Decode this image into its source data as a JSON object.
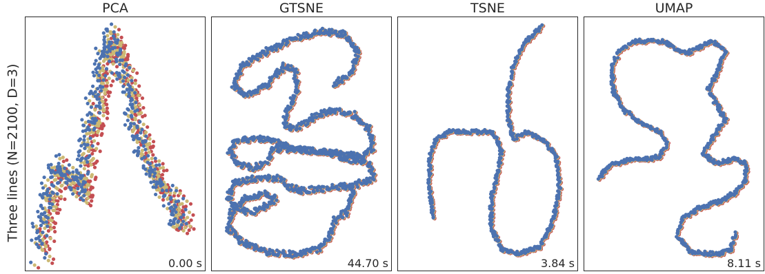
{
  "figure": {
    "ylabel": "Three lines (N=2100, D=3)",
    "series_colors": [
      "#c44e52",
      "#ccb974",
      "#4c72b0"
    ]
  },
  "chart_data": [
    {
      "type": "scatter",
      "title": "PCA",
      "time_label": "0.00 s",
      "xlim": [
        0,
        1
      ],
      "ylim": [
        0,
        1
      ],
      "grid": false,
      "path": [
        [
          0.05,
          0.06
        ],
        [
          0.06,
          0.15
        ],
        [
          0.1,
          0.3
        ],
        [
          0.14,
          0.4
        ],
        [
          0.2,
          0.42
        ],
        [
          0.24,
          0.35
        ],
        [
          0.28,
          0.3
        ],
        [
          0.31,
          0.45
        ],
        [
          0.34,
          0.56
        ],
        [
          0.38,
          0.72
        ],
        [
          0.42,
          0.86
        ],
        [
          0.46,
          0.95
        ],
        [
          0.5,
          0.85
        ],
        [
          0.54,
          0.78
        ],
        [
          0.58,
          0.7
        ],
        [
          0.6,
          0.58
        ],
        [
          0.64,
          0.5
        ],
        [
          0.7,
          0.42
        ],
        [
          0.75,
          0.32
        ],
        [
          0.8,
          0.28
        ],
        [
          0.86,
          0.25
        ],
        [
          0.88,
          0.2
        ],
        [
          0.84,
          0.15
        ]
      ],
      "spread": 0.045,
      "shift": 0.022
    },
    {
      "type": "scatter",
      "title": "GTSNE",
      "time_label": "44.70 s",
      "xlim": [
        0,
        1
      ],
      "ylim": [
        0,
        1
      ],
      "grid": false,
      "path": [
        [
          0.69,
          0.74
        ],
        [
          0.8,
          0.8
        ],
        [
          0.83,
          0.88
        ],
        [
          0.75,
          0.95
        ],
        [
          0.6,
          0.96
        ],
        [
          0.45,
          0.93
        ],
        [
          0.3,
          0.88
        ],
        [
          0.15,
          0.82
        ],
        [
          0.1,
          0.74
        ],
        [
          0.18,
          0.7
        ],
        [
          0.3,
          0.74
        ],
        [
          0.4,
          0.82
        ],
        [
          0.46,
          0.8
        ],
        [
          0.48,
          0.72
        ],
        [
          0.42,
          0.65
        ],
        [
          0.4,
          0.58
        ],
        [
          0.46,
          0.56
        ],
        [
          0.6,
          0.62
        ],
        [
          0.7,
          0.64
        ],
        [
          0.8,
          0.62
        ],
        [
          0.9,
          0.56
        ],
        [
          0.92,
          0.48
        ],
        [
          0.85,
          0.45
        ],
        [
          0.6,
          0.47
        ],
        [
          0.45,
          0.48
        ],
        [
          0.3,
          0.52
        ],
        [
          0.12,
          0.52
        ],
        [
          0.08,
          0.47
        ],
        [
          0.12,
          0.42
        ],
        [
          0.22,
          0.4
        ],
        [
          0.3,
          0.43
        ],
        [
          0.34,
          0.48
        ],
        [
          0.45,
          0.48
        ],
        [
          0.6,
          0.47
        ],
        [
          0.75,
          0.44
        ],
        [
          0.9,
          0.42
        ],
        [
          0.92,
          0.36
        ],
        [
          0.8,
          0.33
        ],
        [
          0.65,
          0.32
        ],
        [
          0.5,
          0.31
        ],
        [
          0.4,
          0.33
        ],
        [
          0.38,
          0.36
        ],
        [
          0.3,
          0.36
        ],
        [
          0.2,
          0.36
        ],
        [
          0.1,
          0.34
        ],
        [
          0.07,
          0.28
        ],
        [
          0.12,
          0.24
        ],
        [
          0.2,
          0.22
        ],
        [
          0.3,
          0.25
        ],
        [
          0.35,
          0.28
        ],
        [
          0.28,
          0.3
        ],
        [
          0.18,
          0.28
        ],
        [
          0.1,
          0.24
        ],
        [
          0.07,
          0.16
        ],
        [
          0.15,
          0.1
        ],
        [
          0.3,
          0.06
        ],
        [
          0.45,
          0.05
        ],
        [
          0.6,
          0.07
        ],
        [
          0.67,
          0.13
        ],
        [
          0.7,
          0.2
        ],
        [
          0.76,
          0.22
        ],
        [
          0.8,
          0.3
        ],
        [
          0.78,
          0.34
        ]
      ],
      "spread": 0.012,
      "shift": 0.004
    },
    {
      "type": "scatter",
      "title": "TSNE",
      "time_label": "3.84 s",
      "xlim": [
        0,
        1
      ],
      "ylim": [
        0,
        1
      ],
      "grid": false,
      "path": [
        [
          0.18,
          0.2
        ],
        [
          0.16,
          0.32
        ],
        [
          0.16,
          0.45
        ],
        [
          0.2,
          0.52
        ],
        [
          0.28,
          0.55
        ],
        [
          0.45,
          0.55
        ],
        [
          0.52,
          0.55
        ],
        [
          0.58,
          0.48
        ],
        [
          0.56,
          0.38
        ],
        [
          0.52,
          0.28
        ],
        [
          0.52,
          0.16
        ],
        [
          0.58,
          0.07
        ],
        [
          0.68,
          0.05
        ],
        [
          0.8,
          0.08
        ],
        [
          0.88,
          0.18
        ],
        [
          0.92,
          0.32
        ],
        [
          0.9,
          0.45
        ],
        [
          0.82,
          0.52
        ],
        [
          0.72,
          0.55
        ],
        [
          0.65,
          0.52
        ],
        [
          0.62,
          0.6
        ],
        [
          0.62,
          0.72
        ],
        [
          0.65,
          0.82
        ],
        [
          0.72,
          0.92
        ],
        [
          0.82,
          0.98
        ]
      ],
      "spread": 0.008,
      "shift": 0.004
    },
    {
      "type": "scatter",
      "title": "UMAP",
      "time_label": "8.11 s",
      "xlim": [
        0,
        1
      ],
      "ylim": [
        0,
        1
      ],
      "grid": false,
      "path": [
        [
          0.06,
          0.36
        ],
        [
          0.12,
          0.41
        ],
        [
          0.2,
          0.43
        ],
        [
          0.3,
          0.44
        ],
        [
          0.36,
          0.44
        ],
        [
          0.42,
          0.45
        ],
        [
          0.46,
          0.5
        ],
        [
          0.42,
          0.55
        ],
        [
          0.32,
          0.58
        ],
        [
          0.22,
          0.63
        ],
        [
          0.14,
          0.72
        ],
        [
          0.14,
          0.82
        ],
        [
          0.18,
          0.88
        ],
        [
          0.28,
          0.92
        ],
        [
          0.44,
          0.92
        ],
        [
          0.5,
          0.89
        ],
        [
          0.58,
          0.87
        ],
        [
          0.66,
          0.9
        ],
        [
          0.72,
          0.92
        ],
        [
          0.8,
          0.88
        ],
        [
          0.76,
          0.8
        ],
        [
          0.7,
          0.72
        ],
        [
          0.75,
          0.66
        ],
        [
          0.8,
          0.6
        ],
        [
          0.72,
          0.52
        ],
        [
          0.67,
          0.46
        ],
        [
          0.75,
          0.42
        ],
        [
          0.85,
          0.44
        ],
        [
          0.92,
          0.42
        ],
        [
          0.92,
          0.35
        ],
        [
          0.85,
          0.3
        ],
        [
          0.78,
          0.27
        ],
        [
          0.65,
          0.24
        ],
        [
          0.55,
          0.2
        ],
        [
          0.52,
          0.12
        ],
        [
          0.6,
          0.06
        ],
        [
          0.75,
          0.05
        ],
        [
          0.83,
          0.07
        ],
        [
          0.86,
          0.14
        ]
      ],
      "spread": 0.008,
      "shift": 0.004
    }
  ]
}
